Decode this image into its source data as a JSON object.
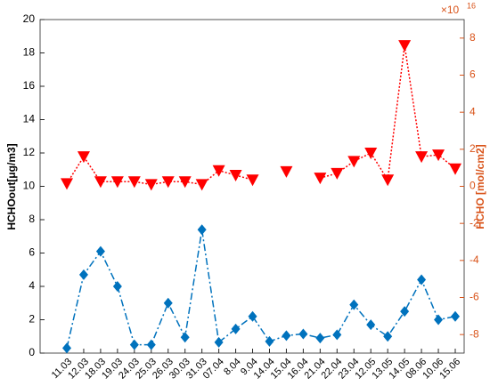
{
  "chart_data": {
    "type": "line",
    "categories": [
      "11.03",
      "12.03",
      "18.03",
      "19.03",
      "24.03",
      "25.03",
      "26.03",
      "30.03",
      "31.03",
      "07.04",
      "8.04",
      "9.04",
      "14.04",
      "15.04",
      "16.04",
      "21.04",
      "22.04",
      "23.04",
      "12.05",
      "13.05",
      "14.05",
      "08.06",
      "10.06",
      "15.06"
    ],
    "y_label": "HCHOout[μg/m3]",
    "y2_label": "HCHO [mol/cm2]",
    "y2_multiplier": "×10",
    "y2_multiplier_exponent": "16",
    "ylim": [
      0,
      20
    ],
    "yticks": [
      0,
      2,
      4,
      6,
      8,
      10,
      12,
      14,
      16,
      18,
      20
    ],
    "y2lim": [
      -9,
      9
    ],
    "y2ticks": [
      -8,
      -6,
      -4,
      -2,
      0,
      2,
      4,
      6,
      8
    ],
    "series": [
      {
        "name": "HCHOout",
        "color": "#0072bd",
        "marker": "diamond",
        "dash": "8 3 2 3",
        "values": [
          0.3,
          4.7,
          6.1,
          4.0,
          0.5,
          0.5,
          3.0,
          0.95,
          7.4,
          0.65,
          1.45,
          2.2,
          0.7,
          1.05,
          1.15,
          0.9,
          1.1,
          2.9,
          1.7,
          1.0,
          2.5,
          4.4,
          2.0,
          2.2
        ]
      },
      {
        "name": "HCHO",
        "color": "#ff0000",
        "marker": "triangle-down",
        "dash": "2 2",
        "axis": "y2",
        "values": [
          0.15,
          1.6,
          0.25,
          0.25,
          0.25,
          0.1,
          0.25,
          0.25,
          0.1,
          0.85,
          0.6,
          0.35,
          null,
          0.8,
          null,
          0.45,
          0.7,
          1.35,
          1.8,
          0.35,
          7.6,
          1.6,
          1.7,
          0.95
        ]
      }
    ],
    "y2_color": "#d95319"
  }
}
